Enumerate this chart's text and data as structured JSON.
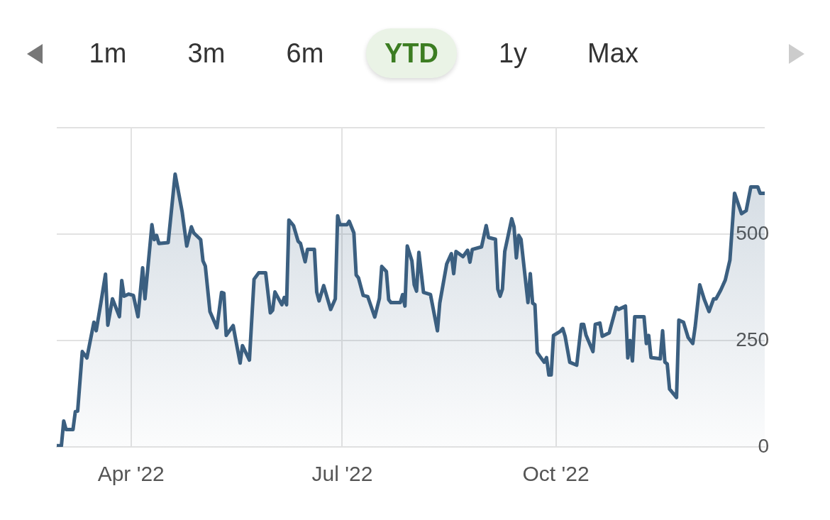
{
  "chart_data": {
    "type": "area",
    "annotations": [
      "1m",
      "3m",
      "6m",
      "YTD",
      "1y",
      "Max"
    ],
    "x": [
      "2022-02-28",
      "2022-03-02",
      "2022-03-03",
      "2022-03-04",
      "2022-03-07",
      "2022-03-08",
      "2022-03-09",
      "2022-03-11",
      "2022-03-13",
      "2022-03-16",
      "2022-03-17",
      "2022-03-19",
      "2022-03-21",
      "2022-03-22",
      "2022-03-24",
      "2022-03-27",
      "2022-03-28",
      "2022-03-29",
      "2022-03-31",
      "2022-04-02",
      "2022-04-04",
      "2022-04-06",
      "2022-04-07",
      "2022-04-10",
      "2022-04-11",
      "2022-04-12",
      "2022-04-13",
      "2022-04-17",
      "2022-04-20",
      "2022-04-23",
      "2022-04-25",
      "2022-04-27",
      "2022-04-28",
      "2022-05-01",
      "2022-05-02",
      "2022-05-03",
      "2022-05-05",
      "2022-05-08",
      "2022-05-10",
      "2022-05-11",
      "2022-05-12",
      "2022-05-15",
      "2022-05-16",
      "2022-05-18",
      "2022-05-19",
      "2022-05-22",
      "2022-05-24",
      "2022-05-26",
      "2022-05-29",
      "2022-05-31",
      "2022-06-01",
      "2022-06-02",
      "2022-06-05",
      "2022-06-06",
      "2022-06-07",
      "2022-06-08",
      "2022-06-10",
      "2022-06-12",
      "2022-06-13",
      "2022-06-15",
      "2022-06-16",
      "2022-06-19",
      "2022-06-20",
      "2022-06-21",
      "2022-06-23",
      "2022-06-26",
      "2022-06-28",
      "2022-06-29",
      "2022-06-30",
      "2022-07-03",
      "2022-07-04",
      "2022-07-06",
      "2022-07-07",
      "2022-07-08",
      "2022-07-10",
      "2022-07-12",
      "2022-07-15",
      "2022-07-17",
      "2022-07-18",
      "2022-07-20",
      "2022-07-21",
      "2022-07-22",
      "2022-07-26",
      "2022-07-27",
      "2022-07-28",
      "2022-07-29",
      "2022-07-31",
      "2022-08-01",
      "2022-08-02",
      "2022-08-03",
      "2022-08-05",
      "2022-08-08",
      "2022-08-11",
      "2022-08-12",
      "2022-08-15",
      "2022-08-17",
      "2022-08-18",
      "2022-08-19",
      "2022-08-22",
      "2022-08-24",
      "2022-08-25",
      "2022-08-26",
      "2022-08-30",
      "2022-09-01",
      "2022-09-02",
      "2022-09-05",
      "2022-09-06",
      "2022-09-07",
      "2022-09-08",
      "2022-09-09",
      "2022-09-12",
      "2022-09-13",
      "2022-09-14",
      "2022-09-15",
      "2022-09-16",
      "2022-09-19",
      "2022-09-20",
      "2022-09-21",
      "2022-09-22",
      "2022-09-23",
      "2022-09-24",
      "2022-09-26",
      "2022-09-27",
      "2022-09-28",
      "2022-09-29",
      "2022-09-30",
      "2022-10-03",
      "2022-10-04",
      "2022-10-05",
      "2022-10-07",
      "2022-10-10",
      "2022-10-12",
      "2022-10-13",
      "2022-10-14",
      "2022-10-17",
      "2022-10-18",
      "2022-10-20",
      "2022-10-21",
      "2022-10-24",
      "2022-10-27",
      "2022-10-28",
      "2022-10-31",
      "2022-11-01",
      "2022-11-02",
      "2022-11-03",
      "2022-11-04",
      "2022-11-08",
      "2022-11-09",
      "2022-11-10",
      "2022-11-11",
      "2022-11-15",
      "2022-11-16",
      "2022-11-17",
      "2022-11-18",
      "2022-11-19",
      "2022-11-22",
      "2022-11-23",
      "2022-11-25",
      "2022-11-27",
      "2022-11-29",
      "2022-11-30",
      "2022-12-02",
      "2022-12-04",
      "2022-12-06",
      "2022-12-08",
      "2022-12-09",
      "2022-12-11",
      "2022-12-13",
      "2022-12-15",
      "2022-12-17",
      "2022-12-20",
      "2022-12-22",
      "2022-12-24",
      "2022-12-27",
      "2022-12-28",
      "2022-12-30"
    ],
    "series": [
      {
        "color": "#3b5f80",
        "values": [
          3,
          3,
          61,
          41,
          41,
          83,
          84,
          224,
          209,
          293,
          273,
          338,
          406,
          286,
          348,
          306,
          391,
          354,
          359,
          356,
          306,
          421,
          348,
          522,
          487,
          497,
          478,
          480,
          641,
          553,
          472,
          517,
          503,
          487,
          437,
          425,
          318,
          280,
          363,
          361,
          262,
          285,
          255,
          197,
          238,
          204,
          394,
          409,
          409,
          315,
          321,
          364,
          334,
          351,
          334,
          533,
          520,
          483,
          478,
          435,
          464,
          464,
          364,
          343,
          379,
          323,
          348,
          543,
          522,
          522,
          530,
          503,
          404,
          397,
          356,
          353,
          305,
          349,
          424,
          412,
          346,
          339,
          339,
          358,
          331,
          472,
          437,
          381,
          366,
          457,
          363,
          358,
          273,
          338,
          430,
          454,
          407,
          459,
          447,
          462,
          434,
          464,
          470,
          520,
          492,
          488,
          371,
          354,
          371,
          459,
          536,
          517,
          444,
          497,
          488,
          339,
          407,
          338,
          334,
          222,
          214,
          199,
          210,
          169,
          169,
          262,
          272,
          278,
          260,
          199,
          192,
          288,
          288,
          263,
          224,
          288,
          291,
          260,
          268,
          328,
          323,
          331,
          209,
          250,
          202,
          306,
          306,
          243,
          262,
          210,
          207,
          273,
          199,
          195,
          136,
          116,
          298,
          293,
          257,
          243,
          281,
          381,
          346,
          318,
          348,
          348,
          368,
          392,
          439,
          596,
          548,
          555,
          611,
          611,
          596,
          596
        ]
      }
    ],
    "xlim": [
      "2022-02-28",
      "2022-12-30"
    ],
    "xticks": [
      {
        "value": "2022-04-01",
        "label": "Apr '22"
      },
      {
        "value": "2022-07-01",
        "label": "Jul '22"
      },
      {
        "value": "2022-10-01",
        "label": "Oct '22"
      }
    ],
    "ylim": [
      0,
      750
    ],
    "yticks": [
      0,
      250,
      500,
      {
        "value": 750,
        "label": null
      }
    ],
    "grid": true,
    "legend": false,
    "marker": "none",
    "line_style": "solid"
  }
}
